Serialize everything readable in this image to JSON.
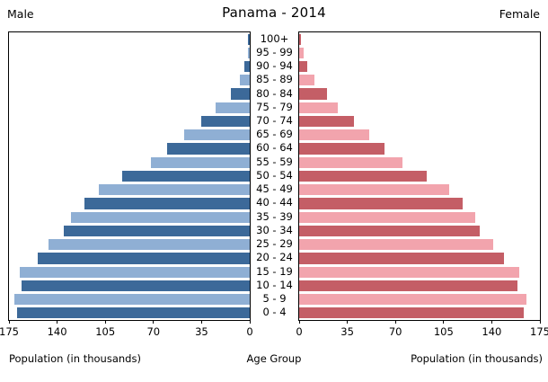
{
  "title": "Panama - 2014",
  "left_header": "Male",
  "right_header": "Female",
  "axis": {
    "left_label": "Population (in thousands)",
    "center_label": "Age Group",
    "right_label": "Population (in thousands)",
    "ticks": [
      0,
      35,
      70,
      105,
      140,
      175
    ],
    "max": 175
  },
  "colors": {
    "male_dark": "#3c6999",
    "male_light": "#8fafd4",
    "female_dark": "#c45e66",
    "female_light": "#f2a4ad"
  },
  "chart_data": {
    "type": "bar",
    "title": "Panama - 2014",
    "orientation": "horizontal-pyramid",
    "categories": [
      "100+",
      "95 - 99",
      "90 - 94",
      "85 - 89",
      "80 - 84",
      "75 - 79",
      "70 - 74",
      "65 - 69",
      "60 - 64",
      "55 - 59",
      "50 - 54",
      "45 - 49",
      "40 - 44",
      "35 - 39",
      "30 - 34",
      "25 - 29",
      "20 - 24",
      "15 - 19",
      "10 - 14",
      "5 - 9",
      "0 - 4"
    ],
    "series": [
      {
        "name": "Male",
        "values": [
          1,
          1,
          4,
          7,
          14,
          25,
          35,
          48,
          60,
          72,
          93,
          110,
          120,
          130,
          135,
          146,
          154,
          167,
          166,
          171,
          169
        ]
      },
      {
        "name": "Female",
        "values": [
          1,
          3,
          6,
          11,
          20,
          28,
          40,
          51,
          62,
          75,
          93,
          109,
          119,
          128,
          131,
          141,
          149,
          160,
          159,
          165,
          163
        ]
      }
    ],
    "xlabel": "Population (in thousands)",
    "ylabel": "Age Group",
    "xlim": [
      0,
      175
    ],
    "grid": false,
    "legend": "none"
  }
}
